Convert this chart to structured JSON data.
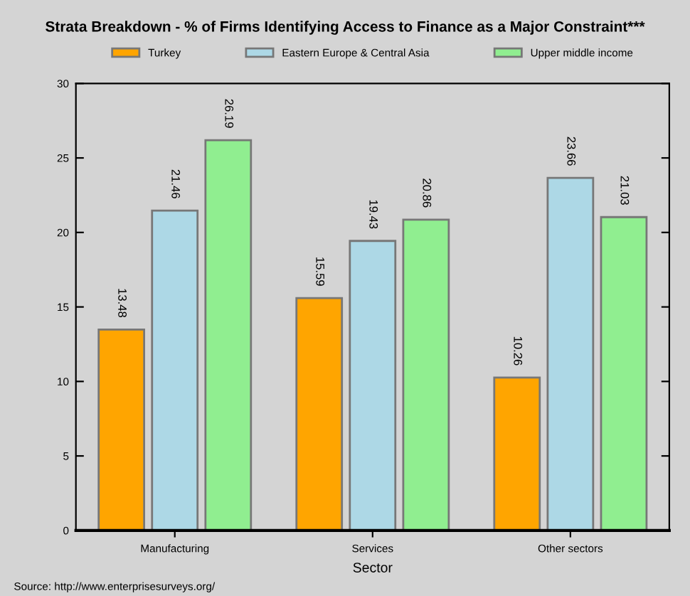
{
  "chart_data": {
    "type": "bar",
    "title": "Strata Breakdown - % of Firms Identifying Access to Finance as a Major Constraint***",
    "xlabel": "Sector",
    "categories": [
      "Manufacturing",
      "Services",
      "Other sectors"
    ],
    "series": [
      {
        "name": "Turkey",
        "color": "#ffa500",
        "values": [
          13.48,
          15.59,
          10.26
        ]
      },
      {
        "name": "Eastern Europe & Central Asia",
        "color": "#add8e6",
        "values": [
          21.46,
          19.43,
          23.66
        ]
      },
      {
        "name": "Upper middle income",
        "color": "#90ee90",
        "values": [
          26.19,
          20.86,
          21.03
        ]
      }
    ],
    "ylim": [
      0,
      30
    ],
    "yticks": [
      0,
      5,
      10,
      15,
      20,
      25,
      30
    ],
    "data_labels": true,
    "legend": "top",
    "grid": false,
    "annotations": [
      "Source: http://www.enterprisesurveys.org/"
    ]
  }
}
